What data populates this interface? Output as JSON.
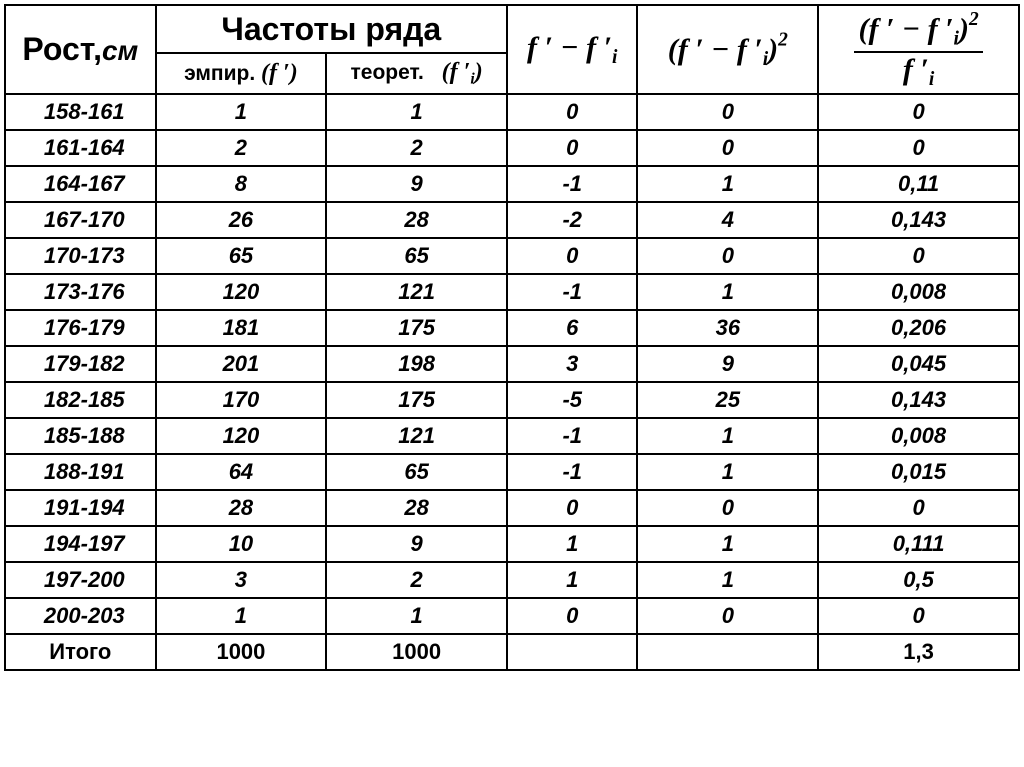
{
  "headers": {
    "rost_label": "Рост,",
    "rost_unit": "см",
    "freq_group": "Частоты ряда",
    "emp_label": "эмпир.",
    "teor_label": "теорет.",
    "total_label": "Итого"
  },
  "columns": [
    "range",
    "emp",
    "teor",
    "diff",
    "sq",
    "chi"
  ],
  "rows": [
    {
      "range": "158-161",
      "emp": "1",
      "teor": "1",
      "diff": "0",
      "sq": "0",
      "chi": "0"
    },
    {
      "range": "161-164",
      "emp": "2",
      "teor": "2",
      "diff": "0",
      "sq": "0",
      "chi": "0"
    },
    {
      "range": "164-167",
      "emp": "8",
      "teor": "9",
      "diff": "-1",
      "sq": "1",
      "chi": "0,11"
    },
    {
      "range": "167-170",
      "emp": "26",
      "teor": "28",
      "diff": "-2",
      "sq": "4",
      "chi": "0,143"
    },
    {
      "range": "170-173",
      "emp": "65",
      "teor": "65",
      "diff": "0",
      "sq": "0",
      "chi": "0"
    },
    {
      "range": "173-176",
      "emp": "120",
      "teor": "121",
      "diff": "-1",
      "sq": "1",
      "chi": "0,008"
    },
    {
      "range": "176-179",
      "emp": "181",
      "teor": "175",
      "diff": "6",
      "sq": "36",
      "chi": "0,206"
    },
    {
      "range": "179-182",
      "emp": "201",
      "teor": "198",
      "diff": "3",
      "sq": "9",
      "chi": "0,045"
    },
    {
      "range": "182-185",
      "emp": "170",
      "teor": "175",
      "diff": "-5",
      "sq": "25",
      "chi": "0,143"
    },
    {
      "range": "185-188",
      "emp": "120",
      "teor": "121",
      "diff": "-1",
      "sq": "1",
      "chi": "0,008"
    },
    {
      "range": "188-191",
      "emp": "64",
      "teor": "65",
      "diff": "-1",
      "sq": "1",
      "chi": "0,015"
    },
    {
      "range": "191-194",
      "emp": "28",
      "teor": "28",
      "diff": "0",
      "sq": "0",
      "chi": "0"
    },
    {
      "range": "194-197",
      "emp": "10",
      "teor": "9",
      "diff": "1",
      "sq": "1",
      "chi": "0,111"
    },
    {
      "range": "197-200",
      "emp": "3",
      "teor": "2",
      "diff": "1",
      "sq": "1",
      "chi": "0,5"
    },
    {
      "range": "200-203",
      "emp": "1",
      "teor": "1",
      "diff": "0",
      "sq": "0",
      "chi": "0"
    }
  ],
  "totals": {
    "emp": "1000",
    "teor": "1000",
    "diff": "",
    "sq": "",
    "chi": "1,3"
  }
}
